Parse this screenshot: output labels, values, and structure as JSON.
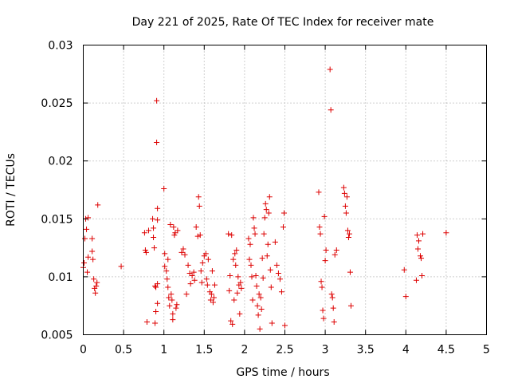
{
  "chart_data": {
    "type": "scatter",
    "title": "Day 221 of 2025, Rate Of TEC Index for receiver mate",
    "xlabel": "GPS time / hours",
    "ylabel": "ROTI / TECUs",
    "xlim": [
      0,
      5
    ],
    "ylim": [
      0.005,
      0.03
    ],
    "x_ticks": [
      0,
      0.5,
      1,
      1.5,
      2,
      2.5,
      3,
      3.5,
      4,
      4.5,
      5
    ],
    "x_tick_labels": [
      "0",
      "0.5",
      "1",
      "1.5",
      "2",
      "2.5",
      "3",
      "3.5",
      "4",
      "4.5",
      "5"
    ],
    "y_ticks": [
      0.005,
      0.01,
      0.015,
      0.02,
      0.025,
      0.03
    ],
    "y_tick_labels": [
      "0.005",
      "0.01",
      "0.015",
      "0.02",
      "0.025",
      "0.03"
    ],
    "grid": true,
    "marker": "+",
    "color": "#dd0000",
    "points": [
      [
        0.0,
        0.0108
      ],
      [
        0.01,
        0.0112
      ],
      [
        0.02,
        0.0133
      ],
      [
        0.03,
        0.015
      ],
      [
        0.04,
        0.0141
      ],
      [
        0.05,
        0.0104
      ],
      [
        0.06,
        0.0117
      ],
      [
        0.06,
        0.0151
      ],
      [
        0.11,
        0.0133
      ],
      [
        0.11,
        0.0122
      ],
      [
        0.12,
        0.0115
      ],
      [
        0.13,
        0.0098
      ],
      [
        0.14,
        0.009
      ],
      [
        0.15,
        0.0086
      ],
      [
        0.16,
        0.0092
      ],
      [
        0.17,
        0.0095
      ],
      [
        0.18,
        0.0162
      ],
      [
        0.47,
        0.0109
      ],
      [
        0.76,
        0.0138
      ],
      [
        0.77,
        0.0123
      ],
      [
        0.78,
        0.0121
      ],
      [
        0.79,
        0.0061
      ],
      [
        0.81,
        0.014
      ],
      [
        0.86,
        0.015
      ],
      [
        0.87,
        0.0142
      ],
      [
        0.87,
        0.0134
      ],
      [
        0.88,
        0.0125
      ],
      [
        0.89,
        0.0092
      ],
      [
        0.89,
        0.006
      ],
      [
        0.9,
        0.0091
      ],
      [
        0.9,
        0.007
      ],
      [
        0.91,
        0.0252
      ],
      [
        0.91,
        0.0216
      ],
      [
        0.92,
        0.0159
      ],
      [
        0.92,
        0.0149
      ],
      [
        0.92,
        0.0094
      ],
      [
        0.92,
        0.0077
      ],
      [
        1.0,
        0.0176
      ],
      [
        1.01,
        0.012
      ],
      [
        1.01,
        0.0109
      ],
      [
        1.03,
        0.0105
      ],
      [
        1.04,
        0.0098
      ],
      [
        1.05,
        0.0115
      ],
      [
        1.05,
        0.0091
      ],
      [
        1.06,
        0.0082
      ],
      [
        1.07,
        0.0075
      ],
      [
        1.08,
        0.0145
      ],
      [
        1.09,
        0.0085
      ],
      [
        1.1,
        0.008
      ],
      [
        1.11,
        0.0068
      ],
      [
        1.11,
        0.0063
      ],
      [
        1.12,
        0.0143
      ],
      [
        1.13,
        0.0136
      ],
      [
        1.14,
        0.0138
      ],
      [
        1.15,
        0.0073
      ],
      [
        1.16,
        0.0076
      ],
      [
        1.17,
        0.014
      ],
      [
        1.22,
        0.0121
      ],
      [
        1.24,
        0.0124
      ],
      [
        1.26,
        0.0119
      ],
      [
        1.28,
        0.0085
      ],
      [
        1.3,
        0.011
      ],
      [
        1.32,
        0.0103
      ],
      [
        1.33,
        0.0094
      ],
      [
        1.35,
        0.0101
      ],
      [
        1.37,
        0.0104
      ],
      [
        1.38,
        0.0097
      ],
      [
        1.4,
        0.0143
      ],
      [
        1.42,
        0.0135
      ],
      [
        1.43,
        0.0169
      ],
      [
        1.44,
        0.0161
      ],
      [
        1.45,
        0.0136
      ],
      [
        1.46,
        0.0105
      ],
      [
        1.47,
        0.0095
      ],
      [
        1.48,
        0.0112
      ],
      [
        1.5,
        0.0118
      ],
      [
        1.52,
        0.012
      ],
      [
        1.53,
        0.0098
      ],
      [
        1.54,
        0.0093
      ],
      [
        1.55,
        0.0115
      ],
      [
        1.57,
        0.0087
      ],
      [
        1.58,
        0.008
      ],
      [
        1.59,
        0.0085
      ],
      [
        1.6,
        0.0105
      ],
      [
        1.61,
        0.0078
      ],
      [
        1.62,
        0.0082
      ],
      [
        1.63,
        0.0093
      ],
      [
        1.8,
        0.0137
      ],
      [
        1.81,
        0.0088
      ],
      [
        1.82,
        0.0101
      ],
      [
        1.83,
        0.0062
      ],
      [
        1.84,
        0.0136
      ],
      [
        1.85,
        0.0059
      ],
      [
        1.86,
        0.0115
      ],
      [
        1.87,
        0.008
      ],
      [
        1.88,
        0.012
      ],
      [
        1.89,
        0.011
      ],
      [
        1.9,
        0.0123
      ],
      [
        1.91,
        0.0086
      ],
      [
        1.92,
        0.01
      ],
      [
        1.93,
        0.0093
      ],
      [
        1.94,
        0.0068
      ],
      [
        1.95,
        0.0095
      ],
      [
        1.96,
        0.009
      ],
      [
        2.05,
        0.0133
      ],
      [
        2.06,
        0.0115
      ],
      [
        2.07,
        0.0128
      ],
      [
        2.08,
        0.011
      ],
      [
        2.09,
        0.01
      ],
      [
        2.1,
        0.008
      ],
      [
        2.11,
        0.0151
      ],
      [
        2.12,
        0.0142
      ],
      [
        2.13,
        0.0137
      ],
      [
        2.14,
        0.0101
      ],
      [
        2.15,
        0.0092
      ],
      [
        2.16,
        0.0075
      ],
      [
        2.17,
        0.0067
      ],
      [
        2.18,
        0.0085
      ],
      [
        2.19,
        0.0055
      ],
      [
        2.2,
        0.0082
      ],
      [
        2.21,
        0.0072
      ],
      [
        2.22,
        0.0116
      ],
      [
        2.23,
        0.0099
      ],
      [
        2.24,
        0.0137
      ],
      [
        2.25,
        0.0151
      ],
      [
        2.26,
        0.0163
      ],
      [
        2.27,
        0.0158
      ],
      [
        2.28,
        0.0118
      ],
      [
        2.29,
        0.0128
      ],
      [
        2.3,
        0.0155
      ],
      [
        2.31,
        0.0169
      ],
      [
        2.32,
        0.0106
      ],
      [
        2.33,
        0.0091
      ],
      [
        2.34,
        0.006
      ],
      [
        2.38,
        0.013
      ],
      [
        2.4,
        0.011
      ],
      [
        2.42,
        0.0103
      ],
      [
        2.44,
        0.0098
      ],
      [
        2.46,
        0.0087
      ],
      [
        2.48,
        0.0143
      ],
      [
        2.49,
        0.0155
      ],
      [
        2.5,
        0.0058
      ],
      [
        2.92,
        0.0173
      ],
      [
        2.93,
        0.0143
      ],
      [
        2.94,
        0.0137
      ],
      [
        2.95,
        0.0096
      ],
      [
        2.96,
        0.0091
      ],
      [
        2.97,
        0.0071
      ],
      [
        2.98,
        0.0064
      ],
      [
        2.99,
        0.0152
      ],
      [
        3.0,
        0.0114
      ],
      [
        3.01,
        0.0123
      ],
      [
        3.06,
        0.0279
      ],
      [
        3.07,
        0.0244
      ],
      [
        3.08,
        0.0085
      ],
      [
        3.09,
        0.0082
      ],
      [
        3.1,
        0.0073
      ],
      [
        3.11,
        0.0061
      ],
      [
        3.12,
        0.0119
      ],
      [
        3.14,
        0.0123
      ],
      [
        3.23,
        0.0177
      ],
      [
        3.24,
        0.0172
      ],
      [
        3.25,
        0.0161
      ],
      [
        3.26,
        0.0155
      ],
      [
        3.27,
        0.0169
      ],
      [
        3.28,
        0.014
      ],
      [
        3.29,
        0.0134
      ],
      [
        3.3,
        0.0137
      ],
      [
        3.31,
        0.0104
      ],
      [
        3.32,
        0.0075
      ],
      [
        3.98,
        0.0106
      ],
      [
        4.0,
        0.0083
      ],
      [
        4.13,
        0.0097
      ],
      [
        4.14,
        0.0136
      ],
      [
        4.15,
        0.0124
      ],
      [
        4.16,
        0.0131
      ],
      [
        4.18,
        0.0118
      ],
      [
        4.19,
        0.0116
      ],
      [
        4.2,
        0.0101
      ],
      [
        4.21,
        0.0137
      ],
      [
        4.5,
        0.0138
      ]
    ]
  }
}
